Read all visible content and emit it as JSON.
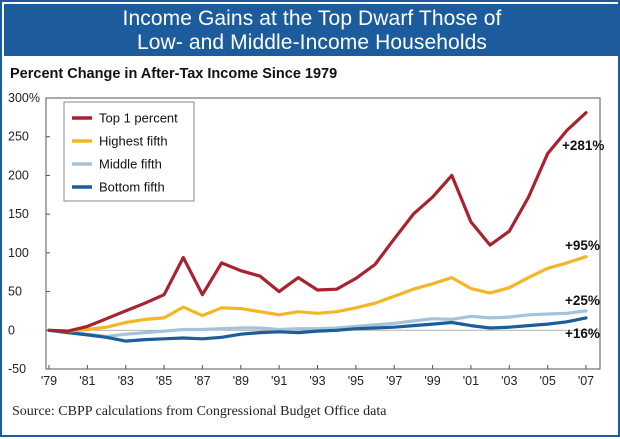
{
  "header": {
    "title_line1": "Income Gains at the Top Dwarf Those of",
    "title_line2": "Low- and Middle-Income Households"
  },
  "source": "Source: CBPP calculations from Congressional Budget Office data",
  "colors": {
    "banner": "#1d5c9c",
    "top1": "#a8232f",
    "highest": "#f5b626",
    "middle": "#a7c3da",
    "bottom": "#1b5e9b"
  },
  "chart_data": {
    "type": "line",
    "title": "Percent Change in After-Tax Income Since 1979",
    "xlabel": "",
    "ylabel": "",
    "x": [
      1979,
      1980,
      1981,
      1982,
      1983,
      1984,
      1985,
      1986,
      1987,
      1988,
      1989,
      1990,
      1991,
      1992,
      1993,
      1994,
      1995,
      1996,
      1997,
      1998,
      1999,
      2000,
      2001,
      2002,
      2003,
      2004,
      2005,
      2006,
      2007
    ],
    "x_tick_labels": [
      "'79",
      "'81",
      "'83",
      "'85",
      "'87",
      "'89",
      "'91",
      "'93",
      "'95",
      "'97",
      "'99",
      "'01",
      "'03",
      "'05",
      "'07"
    ],
    "x_tick_years": [
      1979,
      1981,
      1983,
      1985,
      1987,
      1989,
      1991,
      1993,
      1995,
      1997,
      1999,
      2001,
      2003,
      2005,
      2007
    ],
    "y_ticks": [
      -50,
      0,
      50,
      100,
      150,
      200,
      250,
      300
    ],
    "y_tick_labels": [
      "-50",
      "0",
      "50",
      "100",
      "150",
      "200",
      "250",
      "300%"
    ],
    "ylim": [
      -50,
      300
    ],
    "legend_position": "top-left",
    "series": [
      {
        "name": "Top 1 percent",
        "key": "top1",
        "end_label": "+281%",
        "values": [
          0,
          -1,
          5,
          15,
          25,
          35,
          46,
          94,
          46,
          87,
          77,
          70,
          50,
          68,
          52,
          53,
          67,
          85,
          118,
          150,
          172,
          200,
          140,
          110,
          128,
          172,
          228,
          258,
          281
        ]
      },
      {
        "name": "Highest fifth",
        "key": "highest",
        "end_label": "+95%",
        "values": [
          0,
          -1,
          1,
          4,
          10,
          14,
          16,
          30,
          19,
          29,
          28,
          24,
          20,
          24,
          22,
          24,
          29,
          35,
          44,
          53,
          60,
          68,
          54,
          48,
          55,
          68,
          80,
          87,
          95
        ]
      },
      {
        "name": "Middle fifth",
        "key": "middle",
        "end_label": "+25%",
        "values": [
          0,
          -3,
          -5,
          -8,
          -5,
          -3,
          -1,
          1,
          1,
          2,
          3,
          3,
          1,
          2,
          2,
          3,
          5,
          7,
          9,
          12,
          15,
          14,
          18,
          16,
          17,
          20,
          21,
          22,
          25
        ]
      },
      {
        "name": "Bottom fifth",
        "key": "bottom",
        "end_label": "+16%",
        "values": [
          0,
          -3,
          -6,
          -9,
          -14,
          -12,
          -11,
          -10,
          -11,
          -9,
          -5,
          -3,
          -2,
          -3,
          -1,
          0,
          2,
          3,
          4,
          6,
          8,
          10,
          6,
          3,
          4,
          6,
          8,
          11,
          16
        ]
      }
    ]
  }
}
